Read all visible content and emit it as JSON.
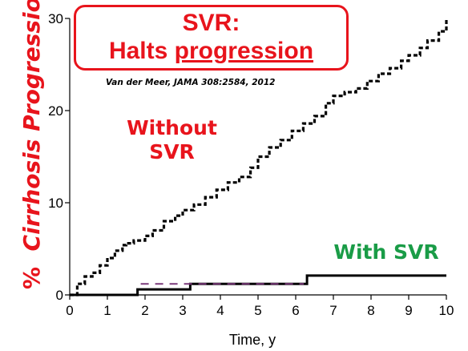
{
  "slide": {
    "title_line1": "SVR:",
    "title_line2_prefix": "Halts ",
    "title_line2_underlined": "progression",
    "citation": "Van der Meer, JAMA 308:2584, 2012",
    "ylabel_percent": "%",
    "ylabel_text": "Cirrhosis Progression",
    "annotation_without_line1": "Without",
    "annotation_without_line2": "SVR",
    "annotation_with": "With SVR",
    "xlabel": "Time, y"
  },
  "colors": {
    "title_red": "#e8141c",
    "annotation_green": "#1a9c47",
    "axis_black": "#000000",
    "segment_purple": "#7a3a7a"
  },
  "chart_data": {
    "type": "line",
    "xlabel": "Time, y",
    "ylabel": "% Cirrhosis Progression",
    "xlim": [
      0,
      10
    ],
    "ylim": [
      0,
      30
    ],
    "xticks": [
      0,
      1,
      2,
      3,
      4,
      5,
      6,
      7,
      8,
      9,
      10
    ],
    "yticks": [
      0,
      10,
      20,
      30
    ],
    "series": [
      {
        "name": "Without SVR",
        "style": "dashed-step",
        "x": [
          0,
          0.2,
          0.4,
          0.6,
          0.8,
          1.0,
          1.2,
          1.4,
          1.5,
          1.7,
          2.0,
          2.2,
          2.5,
          2.8,
          3.0,
          3.3,
          3.6,
          3.9,
          4.2,
          4.5,
          4.8,
          5.0,
          5.3,
          5.6,
          5.9,
          6.2,
          6.5,
          6.8,
          7.0,
          7.3,
          7.6,
          7.9,
          8.2,
          8.5,
          8.8,
          9.0,
          9.3,
          9.5,
          9.8,
          10.0
        ],
        "y": [
          0,
          1.2,
          2.0,
          2.4,
          3.2,
          4.0,
          4.8,
          5.4,
          5.6,
          5.9,
          6.4,
          7.0,
          8.0,
          8.6,
          9.2,
          9.8,
          10.6,
          11.4,
          12.2,
          12.8,
          13.8,
          15.0,
          16.0,
          16.8,
          17.8,
          18.6,
          19.4,
          20.8,
          21.6,
          22.0,
          22.4,
          23.2,
          24.0,
          24.6,
          25.4,
          26.0,
          26.8,
          27.6,
          28.6,
          30.0
        ]
      },
      {
        "name": "With SVR",
        "style": "solid-step",
        "x": [
          0,
          1.8,
          3.2,
          6.3,
          10.0
        ],
        "y": [
          0,
          0.6,
          1.2,
          2.1,
          2.1
        ]
      }
    ]
  }
}
